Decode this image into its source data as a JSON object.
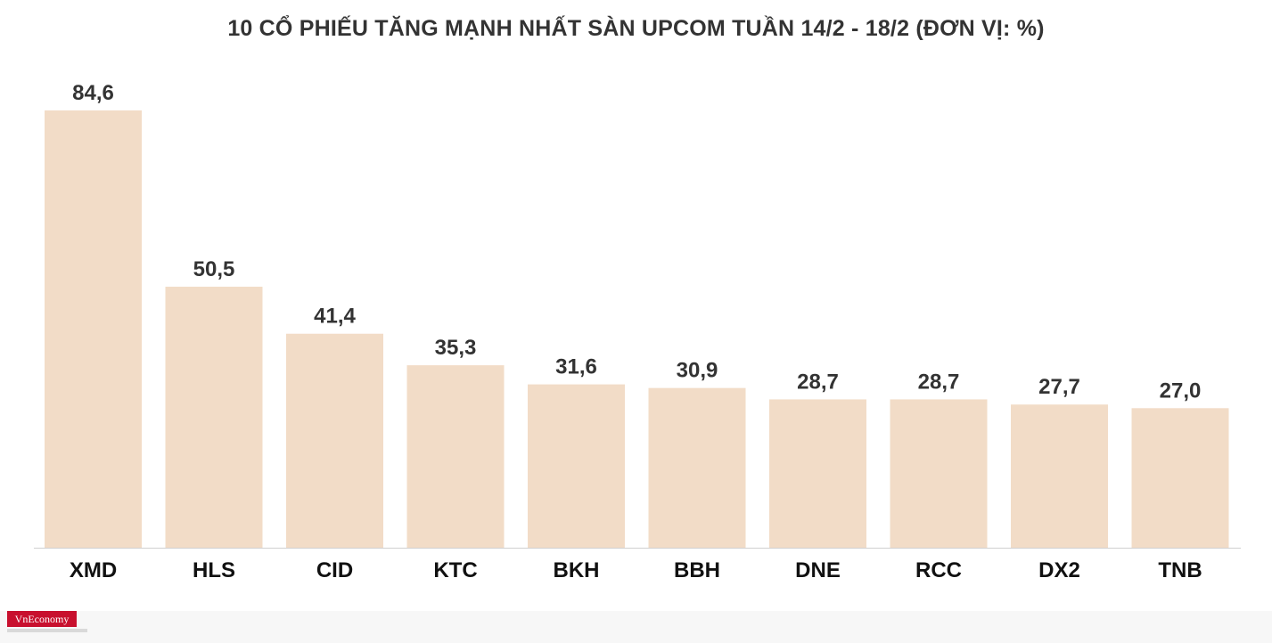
{
  "chart_data": {
    "type": "bar",
    "title": "10 CỔ PHIẾU TĂNG MẠNH NHẤT SÀN UPCOM TUẦN 14/2 - 18/2 (ĐƠN VỊ: %)",
    "categories": [
      "XMD",
      "HLS",
      "CID",
      "KTC",
      "BKH",
      "BBH",
      "DNE",
      "RCC",
      "DX2",
      "TNB"
    ],
    "values": [
      84.6,
      50.5,
      41.4,
      35.3,
      31.6,
      30.9,
      28.7,
      28.7,
      27.7,
      27.0
    ],
    "value_labels": [
      "84,6",
      "50,5",
      "41,4",
      "35,3",
      "31,6",
      "30,9",
      "28,7",
      "28,7",
      "27,7",
      "27,0"
    ],
    "xlabel": "",
    "ylabel": "",
    "ylim": [
      0,
      84.6
    ],
    "grid": false,
    "bar_color": "#f2dcc7"
  },
  "footer": {
    "logo_text": "VnEconomy"
  }
}
